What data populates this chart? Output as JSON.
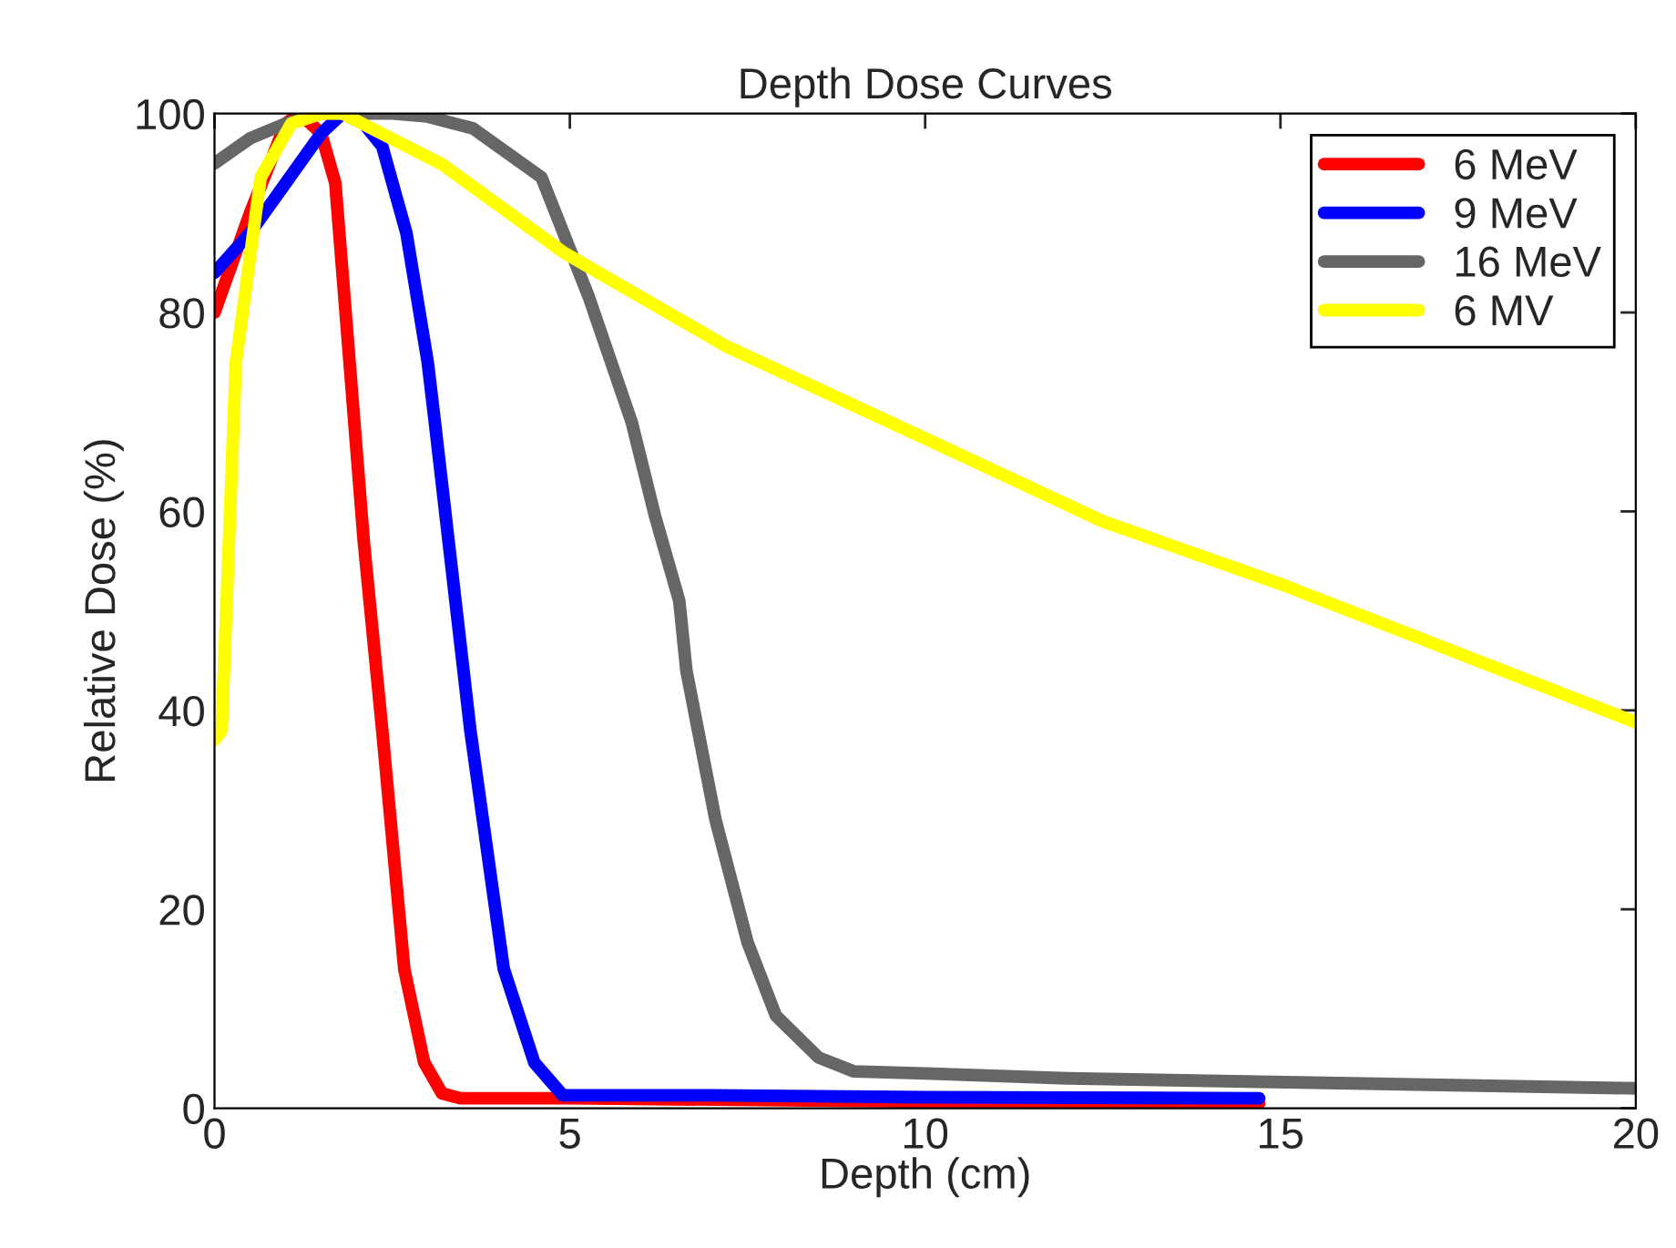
{
  "chart_data": {
    "type": "line",
    "title": "Depth Dose Curves",
    "xlabel": "Depth (cm)",
    "ylabel": "Relative Dose (%)",
    "xlim": [
      0,
      20
    ],
    "ylim": [
      0,
      100
    ],
    "xticks": [
      0,
      5,
      10,
      15,
      20
    ],
    "yticks": [
      0,
      20,
      40,
      60,
      80,
      100
    ],
    "grid": false,
    "legend": "top right",
    "marker": "none",
    "line_style": "solid",
    "series": [
      {
        "name": "6 MeV",
        "color": "#ff0000",
        "x": [
          0,
          0.5,
          1.0,
          1.2,
          1.5,
          1.7,
          1.9,
          2.1,
          2.36,
          2.67,
          2.95,
          3.2,
          3.46,
          5,
          8,
          11,
          14.7
        ],
        "values": [
          80,
          90,
          99,
          100,
          98,
          93,
          75,
          57,
          38,
          14,
          4.6,
          1.5,
          1,
          1,
          0.8,
          0.6,
          0.5
        ]
      },
      {
        "name": "9 MeV",
        "color": "#0000ff",
        "x": [
          0,
          0.5,
          1.0,
          1.5,
          1.8,
          2.1,
          2.36,
          2.7,
          3.0,
          3.1,
          3.6,
          4.07,
          4.5,
          4.9,
          7,
          10,
          14.7
        ],
        "values": [
          84,
          88,
          93,
          98,
          100,
          99,
          96.7,
          88,
          75,
          69,
          38,
          14,
          4.6,
          1.3,
          1.3,
          1.1,
          1
        ]
      },
      {
        "name": "16 MeV",
        "color": "#666666",
        "x": [
          0,
          0.5,
          1.0,
          1.5,
          2.5,
          3.0,
          3.64,
          4.6,
          5.27,
          5.87,
          6.2,
          6.54,
          6.64,
          7.05,
          7.5,
          7.9,
          8.5,
          9.0,
          10,
          12,
          16,
          20
        ],
        "values": [
          95,
          97.5,
          99,
          100,
          100,
          99.7,
          98.5,
          93.6,
          81.5,
          69,
          59.5,
          51,
          44,
          29,
          16.7,
          9.3,
          5.1,
          3.7,
          3.5,
          3,
          2.5,
          2
        ]
      },
      {
        "name": "6 MV",
        "color": "#ffff00",
        "x": [
          0,
          0.1,
          0.3,
          0.65,
          1.08,
          1.5,
          1.8,
          3.2,
          4.92,
          7.2,
          9.8,
          12.5,
          15,
          20
        ],
        "values": [
          37,
          38,
          75,
          93.6,
          99,
          100,
          100,
          94.9,
          86,
          76.6,
          68,
          59,
          52.7,
          38.8
        ]
      }
    ]
  }
}
